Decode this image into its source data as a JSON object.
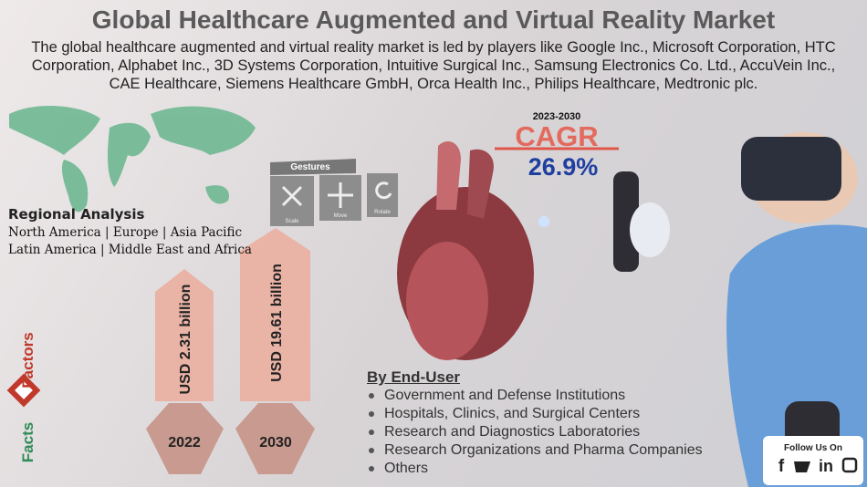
{
  "header": {
    "title": "Global Healthcare Augmented and Virtual Reality Market",
    "description": "The global healthcare augmented and virtual reality market is led by players like Google Inc., Microsoft Corporation, HTC Corporation, Alphabet Inc., 3D Systems Corporation, Intuitive Surgical Inc., Samsung Electronics Co. Ltd., AccuVein Inc., CAE Healthcare, Siemens Healthcare GmbH, Orca Health Inc., Philips Healthcare, Medtronic plc."
  },
  "regional": {
    "title": "Regional Analysis",
    "lines": [
      "North America | Europe | Asia Pacific",
      "Latin America | Middle East and Africa"
    ]
  },
  "cagr": {
    "period": "2023-2030",
    "label": "CAGR",
    "value": "26.9%"
  },
  "gestures": {
    "title": "Gestures",
    "buttons": [
      "Scale",
      "Move",
      "Rotate"
    ]
  },
  "market": [
    {
      "label": "USD 2.31 billion",
      "year": "2022"
    },
    {
      "label": "USD 19.61 billion",
      "year": "2030"
    }
  ],
  "end_user": {
    "title": "By End-User",
    "items": [
      "Government and Defense Institutions",
      "Hospitals, Clinics, and Surgical Centers",
      "Research and Diagnostics Laboratories",
      "Research Organizations and Pharma Companies",
      "Others"
    ]
  },
  "brand": {
    "top": "Factors",
    "bottom": "Facts"
  },
  "social": {
    "title": "Follow Us On",
    "icons": [
      "f",
      "in"
    ]
  }
}
